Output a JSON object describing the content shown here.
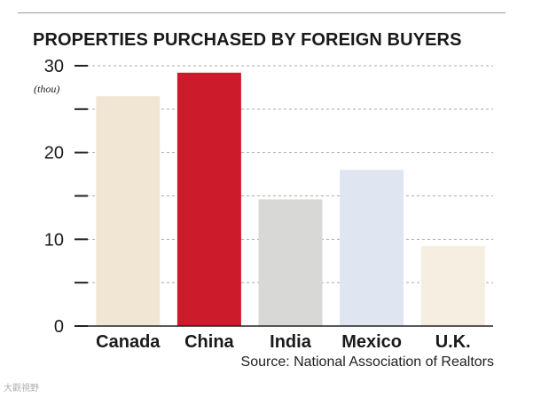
{
  "chart_data": {
    "type": "bar",
    "title": "PROPERTIES PURCHASED BY FOREIGN BUYERS",
    "unit_label": "(thou)",
    "categories": [
      "Canada",
      "China",
      "India",
      "Mexico",
      "U.K."
    ],
    "values": [
      26.5,
      29.2,
      14.6,
      18.0,
      9.2
    ],
    "colors": [
      "#f1e5d3",
      "#cc1b2a",
      "#d8d8d6",
      "#dfe5f1",
      "#f7eee2"
    ],
    "yticks": [
      0,
      10,
      20,
      30
    ],
    "ylim": [
      0,
      30
    ],
    "grid": true,
    "source": "Source: National Association of Realtors"
  },
  "watermark": "大觀視野"
}
